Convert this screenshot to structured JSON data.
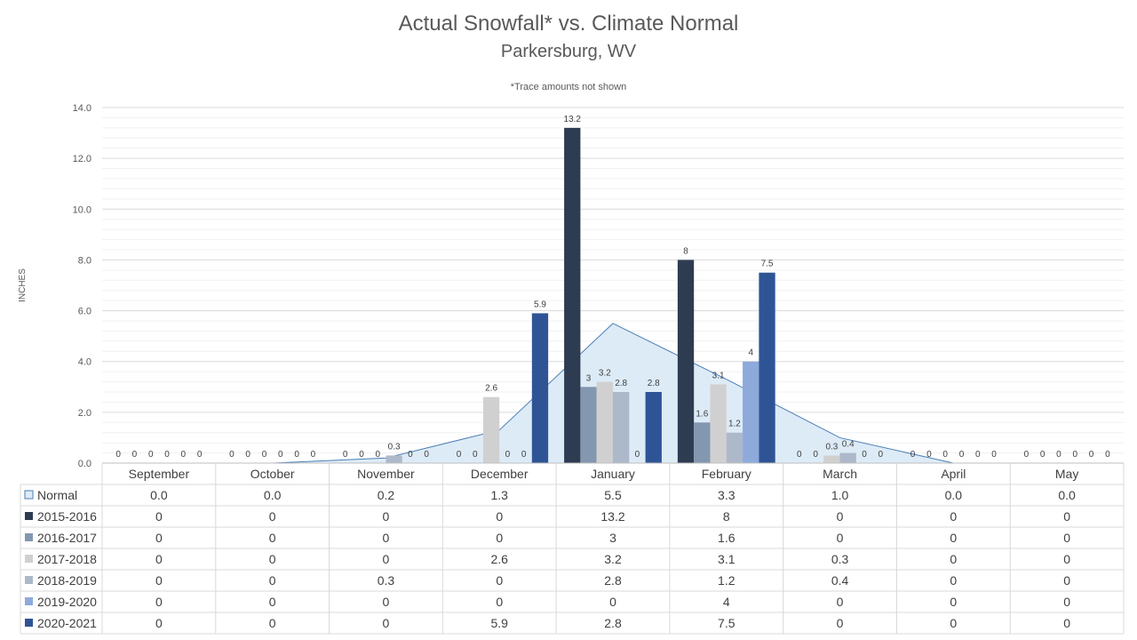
{
  "chart_data": {
    "type": "bar",
    "title": "Actual Snowfall* vs. Climate Normal",
    "subtitle": "Parkersburg, WV",
    "note": "*Trace amounts not shown",
    "ylabel": "INCHES",
    "ylim": [
      0,
      14
    ],
    "yticks": [
      "0.0",
      "2.0",
      "4.0",
      "6.0",
      "8.0",
      "10.0",
      "12.0",
      "14.0"
    ],
    "categories": [
      "September",
      "October",
      "November",
      "December",
      "January",
      "February",
      "March",
      "April",
      "May"
    ],
    "normal": {
      "name": "Normal",
      "type": "area",
      "color": "#ddebf7",
      "line_color": "#4a7fb5",
      "values": [
        0.0,
        0.0,
        0.2,
        1.3,
        5.5,
        3.3,
        1.0,
        0.0,
        0.0
      ],
      "display": [
        "0.0",
        "0.0",
        "0.2",
        "1.3",
        "5.5",
        "3.3",
        "1.0",
        "0.0",
        "0.0"
      ]
    },
    "series": [
      {
        "name": "2015-2016",
        "color": "#2e3c52",
        "values": [
          0,
          0,
          0,
          0,
          13.2,
          8,
          0,
          0,
          0
        ]
      },
      {
        "name": "2016-2017",
        "color": "#8497b0",
        "values": [
          0,
          0,
          0,
          0,
          3,
          1.6,
          0,
          0,
          0
        ]
      },
      {
        "name": "2017-2018",
        "color": "#d0d0d0",
        "values": [
          0,
          0,
          0,
          2.6,
          3.2,
          3.1,
          0.3,
          0,
          0
        ]
      },
      {
        "name": "2018-2019",
        "color": "#adb9ca",
        "values": [
          0,
          0,
          0.3,
          0,
          2.8,
          1.2,
          0.4,
          0,
          0
        ]
      },
      {
        "name": "2019-2020",
        "color": "#8eaadb",
        "values": [
          0,
          0,
          0,
          0,
          0,
          4,
          0,
          0,
          0
        ]
      },
      {
        "name": "2020-2021",
        "color": "#2f5496",
        "values": [
          0,
          0,
          0,
          5.9,
          2.8,
          7.5,
          0,
          0,
          0
        ]
      }
    ]
  }
}
